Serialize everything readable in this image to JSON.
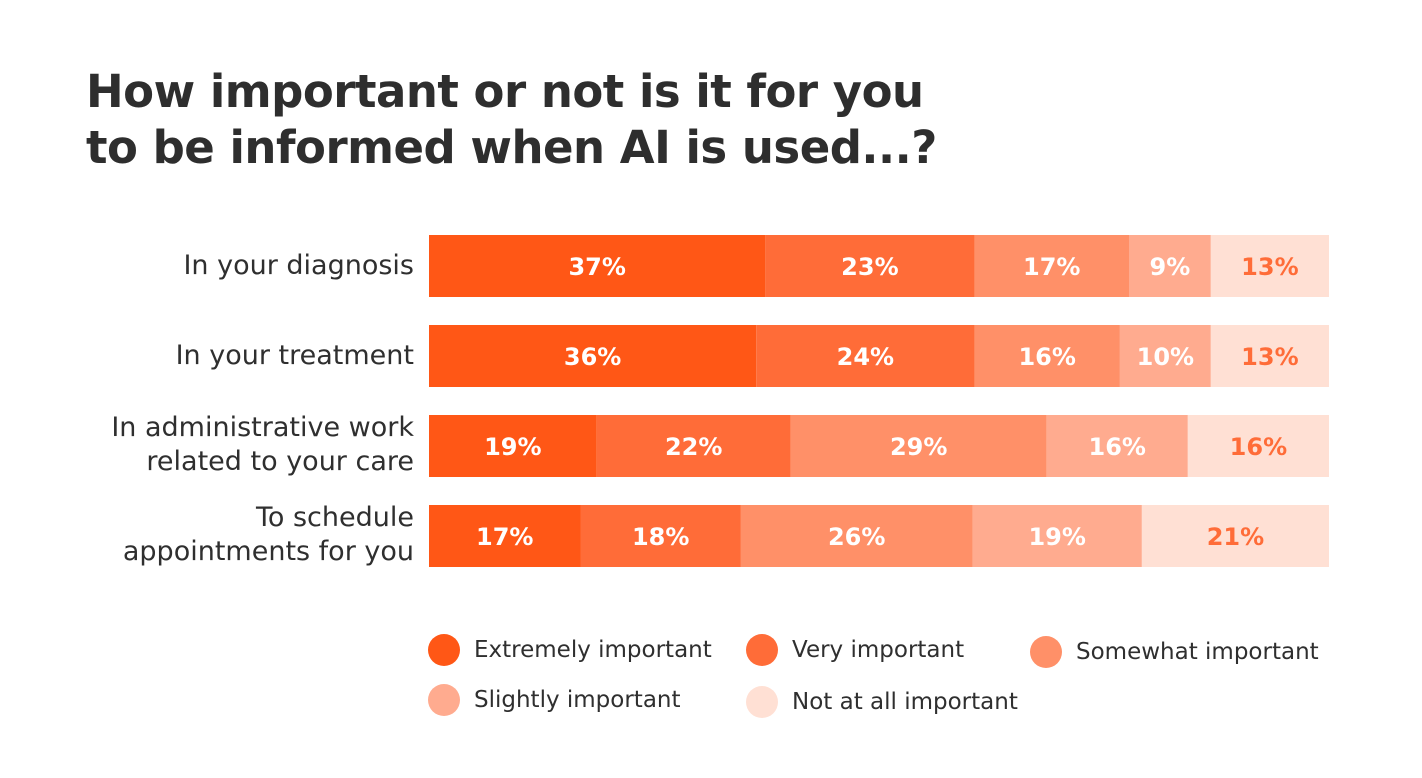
{
  "chart_data": {
    "type": "bar",
    "orientation": "horizontal",
    "stacked": true,
    "title": [
      "How important or not is it for you",
      "to be informed when AI is used...?"
    ],
    "categories": [
      [
        "In your diagnosis"
      ],
      [
        "In your treatment"
      ],
      [
        "In administrative work",
        "related to your care"
      ],
      [
        "To schedule",
        "appointments for you"
      ]
    ],
    "series": [
      {
        "name": "Extremely important",
        "values": [
          37,
          36,
          19,
          17
        ],
        "color": "#ff5716",
        "label_color": "#ffffff"
      },
      {
        "name": "Very important",
        "values": [
          23,
          24,
          22,
          18
        ],
        "color": "#ff6c38",
        "label_color": "#ffffff"
      },
      {
        "name": "Somewhat important",
        "values": [
          17,
          16,
          29,
          26
        ],
        "color": "#ff9068",
        "label_color": "#ffffff"
      },
      {
        "name": "Slightly important",
        "values": [
          9,
          10,
          16,
          19
        ],
        "color": "#ffab8f",
        "label_color": "#ffffff"
      },
      {
        "name": "Not at all important",
        "values": [
          13,
          13,
          16,
          21
        ],
        "color": "#ffe0d4",
        "label_color": "#ff6c38"
      }
    ],
    "value_suffix": "%",
    "legend": "bottom"
  }
}
